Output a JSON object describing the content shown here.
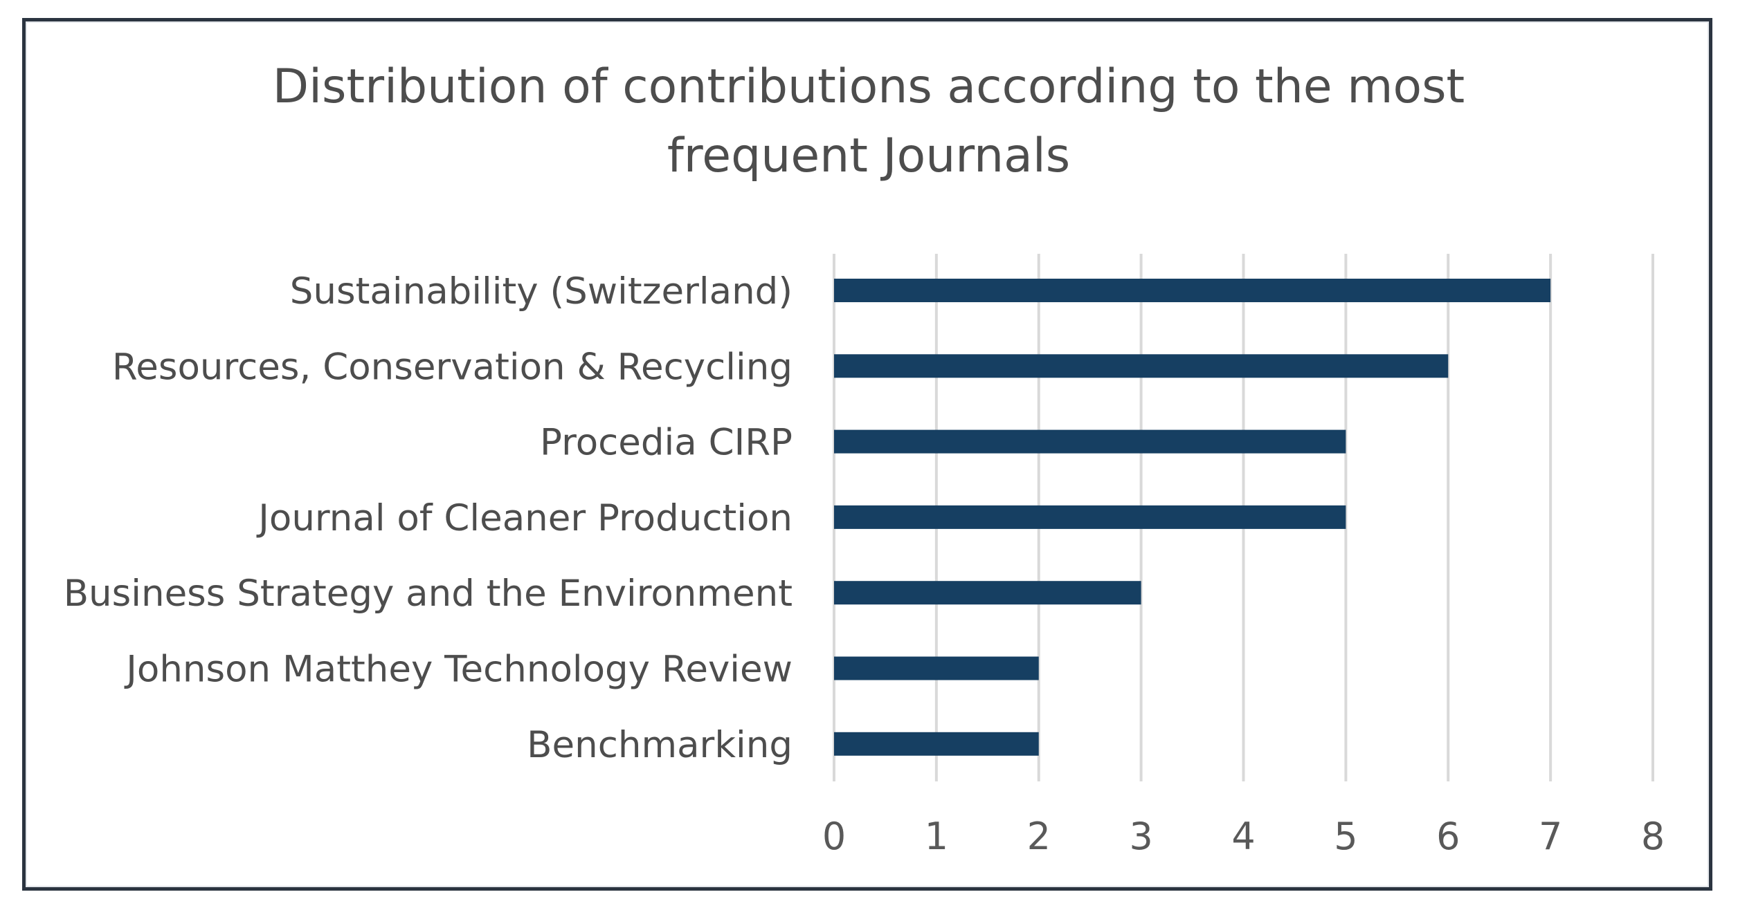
{
  "chart_data": {
    "type": "bar",
    "orientation": "horizontal",
    "title": "Distribution of contributions according to the most frequent Journals",
    "title_lines": [
      "Distribution of contributions according to the most",
      "frequent Journals"
    ],
    "categories": [
      "Sustainability (Switzerland)",
      "Resources, Conservation & Recycling",
      "Procedia CIRP",
      "Journal of Cleaner Production",
      "Business Strategy and the Environment",
      "Johnson Matthey Technology Review",
      "Benchmarking"
    ],
    "values": [
      7,
      6,
      5,
      5,
      3,
      2,
      2
    ],
    "xlim": [
      0,
      8
    ],
    "xticks": [
      "0",
      "1",
      "2",
      "3",
      "4",
      "5",
      "6",
      "7",
      "8"
    ],
    "xlabel": "",
    "ylabel": "",
    "grid": "vertical",
    "legend": "none",
    "colors": {
      "bar": "#163f62",
      "grid": "#d9d9d9",
      "text": "#4d4d4d",
      "frame": "#2b3440"
    }
  }
}
